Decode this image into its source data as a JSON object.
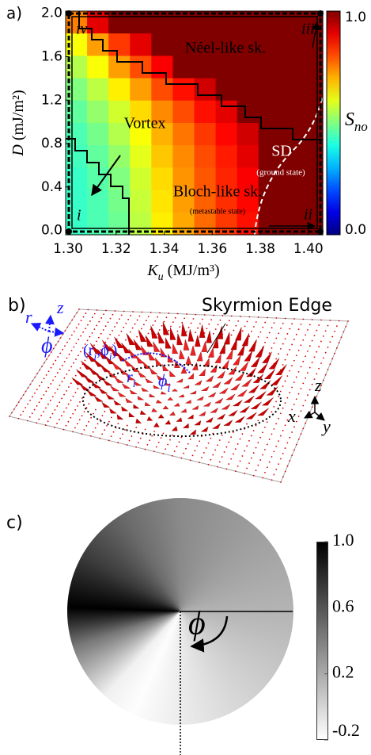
{
  "chart_data": [
    {
      "type": "heatmap",
      "panel_label": "a)",
      "x_label": [
        {
          "t": "K",
          "italic": true
        },
        {
          "t": "u",
          "sub": true
        },
        {
          "t": " (MJ/m³)"
        }
      ],
      "y_label": [
        {
          "t": "D",
          "italic": true
        },
        {
          "t": " (mJ/m²)"
        }
      ],
      "colorbar_label": [
        {
          "t": "S",
          "italic": true
        },
        {
          "t": "no",
          "sub": true
        }
      ],
      "xlim": [
        1.299,
        1.406
      ],
      "ylim": [
        -0.04,
        2.02
      ],
      "xticks": [
        {
          "value": 1.3,
          "label": "1.30"
        },
        1.32,
        1.34,
        1.36,
        1.38,
        {
          "value": 1.4,
          "label": "1.40"
        }
      ],
      "yticks": [
        {
          "value": 0,
          "label": "0.0"
        },
        0.4,
        0.8,
        1.2,
        1.6,
        {
          "value": 2,
          "label": "2.0"
        }
      ],
      "colormap": "jet",
      "clim": [
        0,
        1
      ],
      "cticks": [
        {
          "value": 0,
          "label": "0.0"
        },
        {
          "value": 1,
          "label": "1.0"
        }
      ],
      "z": [
        [
          0.75,
          0.9,
          1,
          1,
          1,
          1,
          1,
          1,
          1,
          1,
          1,
          1
        ],
        [
          0.62,
          0.72,
          0.82,
          0.9,
          1,
          1,
          1,
          1,
          1,
          1,
          1,
          1
        ],
        [
          0.55,
          0.62,
          0.72,
          0.8,
          0.88,
          1,
          1,
          1,
          1,
          1,
          1,
          1
        ],
        [
          0.5,
          0.56,
          0.64,
          0.72,
          0.8,
          0.86,
          0.92,
          1,
          1,
          1,
          1,
          1
        ],
        [
          0.47,
          0.52,
          0.58,
          0.66,
          0.74,
          0.8,
          0.86,
          0.9,
          1,
          1,
          1,
          1
        ],
        [
          0.45,
          0.49,
          0.55,
          0.62,
          0.7,
          0.76,
          0.82,
          0.87,
          0.92,
          1,
          1,
          1
        ],
        [
          0.44,
          0.47,
          0.52,
          0.6,
          0.68,
          0.74,
          0.8,
          0.85,
          0.9,
          1,
          1,
          1
        ],
        [
          0.43,
          0.46,
          0.5,
          0.58,
          0.66,
          0.73,
          0.79,
          0.84,
          0.88,
          1,
          1,
          1
        ],
        [
          0.43,
          0.45,
          0.49,
          0.57,
          0.65,
          0.72,
          0.78,
          0.83,
          0.87,
          1,
          1,
          1
        ],
        [
          0.43,
          0.45,
          0.48,
          0.56,
          0.64,
          0.71,
          0.77,
          0.82,
          0.86,
          1,
          1,
          1
        ]
      ],
      "annotations": {
        "neel": "Néel-like sk.",
        "vortex": "Vortex",
        "sd": "SD",
        "ground": "(ground state)",
        "bloch": "Bloch-like sk.",
        "meta": "(metastable state)",
        "i": "i",
        "ii": "ii",
        "iii": "iii",
        "iv": "iv"
      }
    },
    {
      "type": "image",
      "panel_label": "c)",
      "angle_label": "ϕ",
      "colormap": "gray_r",
      "clim": [
        -0.2,
        1.0
      ],
      "cticks": [
        {
          "value": 1,
          "label": "1.0"
        },
        0.6,
        0.2,
        -0.2
      ]
    }
  ],
  "panel_b": {
    "panel_label": "b)",
    "edge_label": "Skyrmion Edge",
    "local_axes": {
      "r": "r",
      "z": "z",
      "phi": "ϕ"
    },
    "point_label": [
      {
        "t": "(r"
      },
      {
        "t": "i",
        "sub": true
      },
      {
        "t": ",ϕ"
      },
      {
        "t": "i",
        "sub": true
      },
      {
        "t": ")"
      }
    ],
    "r_label": [
      {
        "t": "r"
      },
      {
        "t": "i",
        "sub": true
      }
    ],
    "phi_label": [
      {
        "t": "ϕ"
      },
      {
        "t": "i",
        "sub": true
      }
    ],
    "global_axes": {
      "x": "x",
      "y": "y",
      "z": "z"
    }
  }
}
